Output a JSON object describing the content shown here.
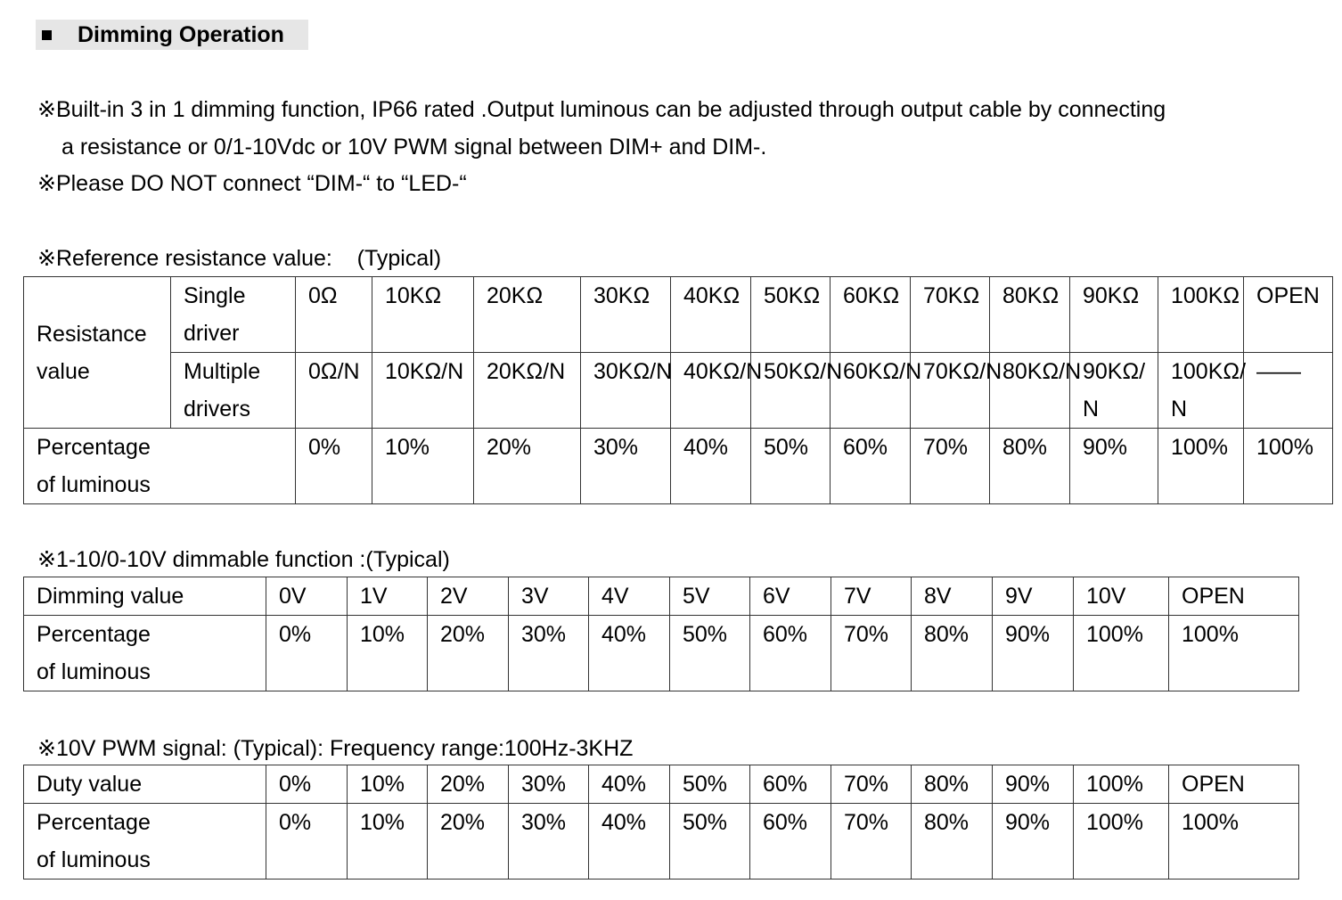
{
  "section": {
    "title": "Dimming Operation"
  },
  "notes": {
    "mark": "※",
    "line1": "Built-in 3 in 1 dimming function, IP66 rated .Output luminous can be adjusted through output cable by connecting",
    "line2": "a resistance or 0/1-10Vdc or 10V PWM signal between DIM+ and DIM-.",
    "line3": "Please DO NOT connect “DIM-“ to “LED-“"
  },
  "resistance": {
    "caption": "Reference resistance value:    (Typical)",
    "row_header": [
      "Resistance",
      "value"
    ],
    "single_label": [
      "Single",
      "driver"
    ],
    "multiple_label": [
      "Multiple",
      "drivers"
    ],
    "percentage_label": [
      "Percentage",
      "of luminous"
    ],
    "single_values": [
      "0Ω",
      "10KΩ",
      "20KΩ",
      "30KΩ",
      "40KΩ",
      "50KΩ",
      "60KΩ",
      "70KΩ",
      "80KΩ",
      "90KΩ",
      "100KΩ",
      "OPEN"
    ],
    "multiple_values": [
      [
        "0Ω/N"
      ],
      [
        "10KΩ/N"
      ],
      [
        "20KΩ/N"
      ],
      [
        "30KΩ/N"
      ],
      [
        "40KΩ/N"
      ],
      [
        "50KΩ/N"
      ],
      [
        "60KΩ/N"
      ],
      [
        "70KΩ/N"
      ],
      [
        "80KΩ/N"
      ],
      [
        "90KΩ/",
        "N"
      ],
      [
        "100KΩ/",
        "N"
      ],
      [
        "——"
      ]
    ],
    "percentages": [
      "0%",
      "10%",
      "20%",
      "30%",
      "40%",
      "50%",
      "60%",
      "70%",
      "80%",
      "90%",
      "100%",
      "100%"
    ]
  },
  "voltage": {
    "caption": "1-10/0-10V dimmable function :(Typical)",
    "row1_label": "Dimming value",
    "row2_label": [
      "Percentage",
      "of luminous"
    ],
    "values": [
      "0V",
      "1V",
      "2V",
      "3V",
      "4V",
      "5V",
      "6V",
      "7V",
      "8V",
      "9V",
      "10V",
      "OPEN"
    ],
    "percentages": [
      "0%",
      "10%",
      "20%",
      "30%",
      "40%",
      "50%",
      "60%",
      "70%",
      "80%",
      "90%",
      "100%",
      "100%"
    ]
  },
  "pwm": {
    "caption": "10V PWM signal: (Typical): Frequency range:100Hz-3KHZ",
    "row1_label": "Duty value",
    "row2_label": [
      "Percentage",
      "of luminous"
    ],
    "values": [
      "0%",
      "10%",
      "20%",
      "30%",
      "40%",
      "50%",
      "60%",
      "70%",
      "80%",
      "90%",
      "100%",
      "OPEN"
    ],
    "percentages": [
      "0%",
      "10%",
      "20%",
      "30%",
      "40%",
      "50%",
      "60%",
      "70%",
      "80%",
      "90%",
      "100%",
      "100%"
    ]
  }
}
